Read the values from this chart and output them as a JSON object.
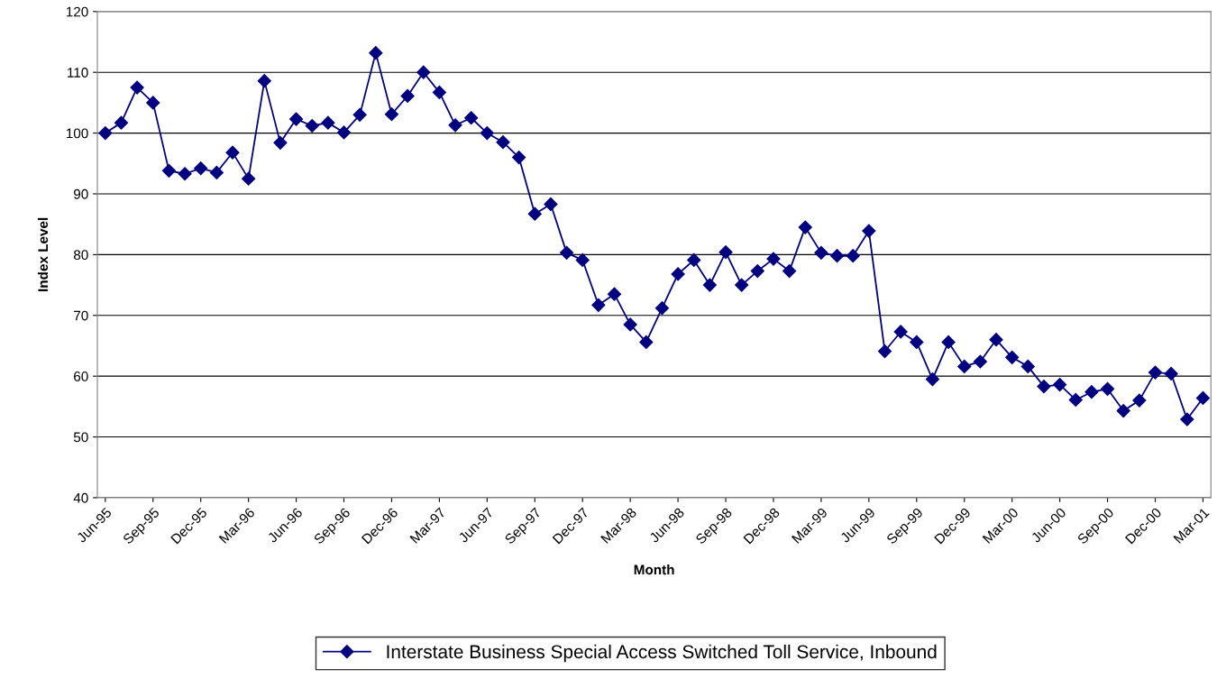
{
  "chart_data": {
    "type": "line",
    "xlabel": "Month",
    "ylabel": "Index Level",
    "categories": [
      "Jun-95",
      null,
      null,
      "Sep-95",
      null,
      null,
      "Dec-95",
      null,
      null,
      "Mar-96",
      null,
      null,
      "Jun-96",
      null,
      null,
      "Sep-96",
      null,
      null,
      "Dec-96",
      null,
      null,
      "Mar-97",
      null,
      null,
      "Jun-97",
      null,
      null,
      "Sep-97",
      null,
      null,
      "Dec-97",
      null,
      null,
      "Mar-98",
      null,
      null,
      "Jun-98",
      null,
      null,
      "Sep-98",
      null,
      null,
      "Dec-98",
      null,
      null,
      "Mar-99",
      null,
      null,
      "Jun-99",
      null,
      null,
      "Sep-99",
      null,
      null,
      "Dec-99",
      null,
      null,
      "Mar-00",
      null,
      null,
      "Jun-00",
      null,
      null,
      "Sep-00",
      null,
      null,
      "Dec-00",
      null,
      null,
      "Mar-01"
    ],
    "series": [
      {
        "name": "Interstate Business Special Access Switched Toll Service, Inbound",
        "color": "#000080",
        "values": [
          100,
          101.7,
          107.5,
          105,
          93.8,
          93.3,
          94.2,
          93.5,
          96.8,
          92.5,
          108.6,
          98.4,
          102.3,
          101.2,
          101.7,
          100.1,
          103,
          113.2,
          103.1,
          106.1,
          110,
          106.7,
          101.3,
          102.5,
          100,
          98.5,
          96,
          86.7,
          88.3,
          80.3,
          79.1,
          71.7,
          73.5,
          68.5,
          65.6,
          71.2,
          76.8,
          79.1,
          75,
          80.4,
          75,
          77.3,
          79.3,
          77.3,
          84.5,
          80.3,
          79.8,
          79.8,
          83.9,
          64.1,
          67.3,
          65.6,
          59.5,
          65.6,
          61.6,
          62.4,
          66,
          63.1,
          61.6,
          58.3,
          58.6,
          56.1,
          57.4,
          57.9,
          54.3,
          56,
          60.6,
          60.4,
          52.9,
          56.4
        ]
      }
    ],
    "ylim": [
      40,
      120
    ],
    "yticks": [
      40,
      50,
      60,
      70,
      80,
      90,
      100,
      110,
      120
    ],
    "grid": "y",
    "legend": "bottom",
    "marker": "diamond",
    "line_style": "solid"
  }
}
